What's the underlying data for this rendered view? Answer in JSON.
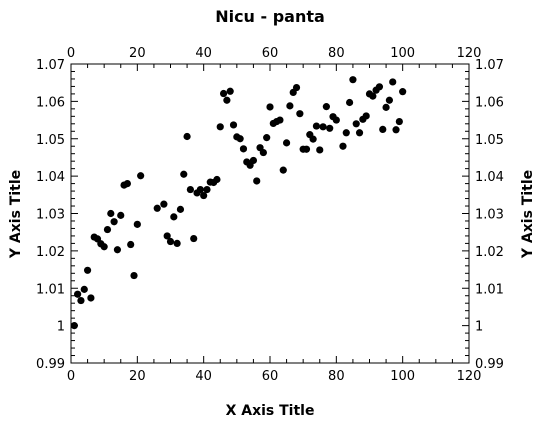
{
  "chart_data": {
    "type": "scatter",
    "title": "Nicu - panta",
    "xlabel": "X Axis Title",
    "ylabel": "Y Axis Title",
    "xlim": [
      0,
      120
    ],
    "ylim": [
      0.99,
      1.07
    ],
    "x_major_ticks": [
      0,
      20,
      40,
      60,
      80,
      100,
      120
    ],
    "x_tick_labels": [
      "0",
      "20",
      "40",
      "60",
      "80",
      "100",
      "120"
    ],
    "y_major_ticks": [
      0.99,
      1.0,
      1.01,
      1.02,
      1.03,
      1.04,
      1.05,
      1.06,
      1.07
    ],
    "y_tick_labels": [
      "0.99",
      "1",
      "1.01",
      "1.02",
      "1.03",
      "1.04",
      "1.05",
      "1.06",
      "1.07"
    ],
    "axes_on_all_sides": true,
    "grid": false,
    "legend": false,
    "marker_color": "#000000",
    "series": [
      {
        "points": [
          [
            1,
            1.0
          ],
          [
            2,
            1.0084
          ],
          [
            3,
            1.0067
          ],
          [
            4,
            1.0097
          ],
          [
            5,
            1.0148
          ],
          [
            6,
            1.0074
          ],
          [
            7,
            1.0237
          ],
          [
            8,
            1.0232
          ],
          [
            9,
            1.0219
          ],
          [
            10,
            1.0211
          ],
          [
            11,
            1.0257
          ],
          [
            12,
            1.03
          ],
          [
            13,
            1.0278
          ],
          [
            14,
            1.0203
          ],
          [
            15,
            1.0295
          ],
          [
            16,
            1.0376
          ],
          [
            17,
            1.038
          ],
          [
            18,
            1.0217
          ],
          [
            19,
            1.0134
          ],
          [
            20,
            1.0271
          ],
          [
            21,
            1.0401
          ],
          [
            26,
            1.0314
          ],
          [
            28,
            1.0325
          ],
          [
            29,
            1.024
          ],
          [
            30,
            1.0225
          ],
          [
            31,
            1.0291
          ],
          [
            32,
            1.022
          ],
          [
            33,
            1.0311
          ],
          [
            34,
            1.0405
          ],
          [
            35,
            1.0506
          ],
          [
            36,
            1.0364
          ],
          [
            37,
            1.0233
          ],
          [
            38,
            1.0355
          ],
          [
            39,
            1.0364
          ],
          [
            40,
            1.0348
          ],
          [
            41,
            1.0364
          ],
          [
            42,
            1.0384
          ],
          [
            43,
            1.0383
          ],
          [
            44,
            1.0391
          ],
          [
            45,
            1.0532
          ],
          [
            46,
            1.0621
          ],
          [
            47,
            1.0603
          ],
          [
            48,
            1.0627
          ],
          [
            49,
            1.0537
          ],
          [
            50,
            1.0505
          ],
          [
            51,
            1.05
          ],
          [
            52,
            1.0473
          ],
          [
            53,
            1.0438
          ],
          [
            54,
            1.0429
          ],
          [
            55,
            1.0442
          ],
          [
            56,
            1.0387
          ],
          [
            57,
            1.0476
          ],
          [
            58,
            1.0463
          ],
          [
            59,
            1.0503
          ],
          [
            60,
            1.0585
          ],
          [
            61,
            1.0541
          ],
          [
            62,
            1.0546
          ],
          [
            63,
            1.055
          ],
          [
            64,
            1.0416
          ],
          [
            65,
            1.0489
          ],
          [
            66,
            1.0588
          ],
          [
            67,
            1.0624
          ],
          [
            68,
            1.0637
          ],
          [
            69,
            1.0567
          ],
          [
            70,
            1.0472
          ],
          [
            71,
            1.0472
          ],
          [
            72,
            1.0511
          ],
          [
            73,
            1.0499
          ],
          [
            74,
            1.0534
          ],
          [
            75,
            1.047
          ],
          [
            76,
            1.0532
          ],
          [
            77,
            1.0586
          ],
          [
            78,
            1.0528
          ],
          [
            79,
            1.0559
          ],
          [
            80,
            1.055
          ],
          [
            82,
            1.048
          ],
          [
            83,
            1.0516
          ],
          [
            84,
            1.0597
          ],
          [
            85,
            1.0658
          ],
          [
            86,
            1.054
          ],
          [
            87,
            1.0516
          ],
          [
            88,
            1.0552
          ],
          [
            89,
            1.0561
          ],
          [
            90,
            1.062
          ],
          [
            91,
            1.0614
          ],
          [
            92,
            1.063
          ],
          [
            93,
            1.0639
          ],
          [
            94,
            1.0525
          ],
          [
            95,
            1.0584
          ],
          [
            96,
            1.0603
          ],
          [
            97,
            1.0652
          ],
          [
            98,
            1.0524
          ],
          [
            99,
            1.0546
          ],
          [
            100,
            1.0626
          ]
        ]
      }
    ]
  }
}
